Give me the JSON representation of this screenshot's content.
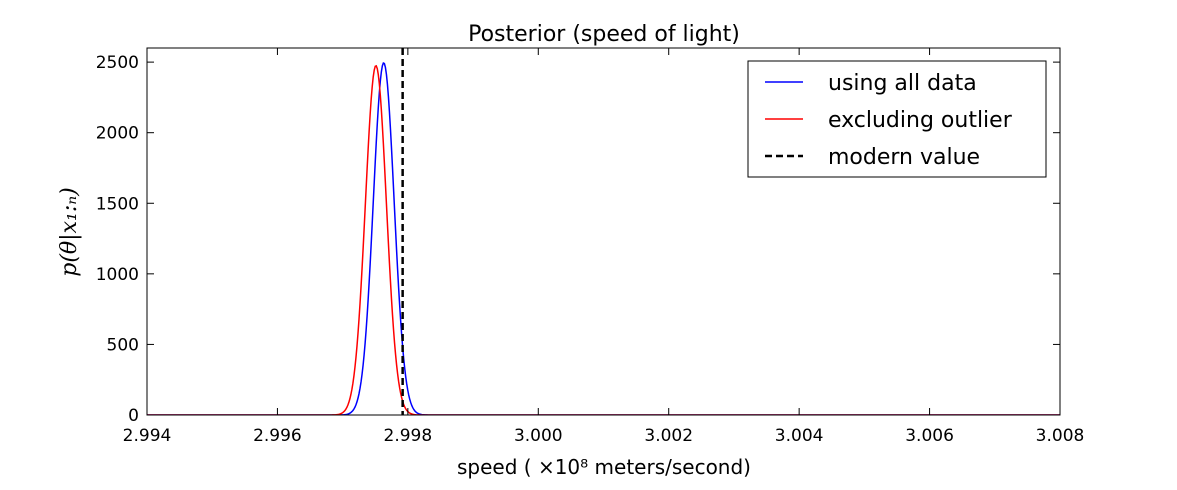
{
  "chart_data": {
    "type": "line",
    "title": "Posterior (speed of light)",
    "xlabel": "speed ( ×10⁸  meters/second)",
    "ylabel": "p(θ|x₁:ₙ)",
    "xlim": [
      2.994,
      3.008
    ],
    "ylim": [
      0,
      2600
    ],
    "xticks": [
      2.994,
      2.996,
      2.998,
      3.0,
      3.002,
      3.004,
      3.006,
      3.008
    ],
    "xtick_labels": [
      "2.994",
      "2.996",
      "2.998",
      "3.000",
      "3.002",
      "3.004",
      "3.006",
      "3.008"
    ],
    "yticks": [
      0,
      500,
      1000,
      1500,
      2000,
      2500
    ],
    "ytick_labels": [
      "0",
      "500",
      "1000",
      "1500",
      "2000",
      "2500"
    ],
    "grid": false,
    "legend_position": "top-right",
    "series": [
      {
        "name": "using all data",
        "color": "#0000ff",
        "style": "solid",
        "distribution": "normal",
        "mean": 2.99763,
        "sd": 0.00016,
        "peak": 2495
      },
      {
        "name": "excluding outlier",
        "color": "#ff0000",
        "style": "solid",
        "distribution": "normal",
        "mean": 2.99751,
        "sd": 0.000161,
        "peak": 2475
      }
    ],
    "reference_lines": [
      {
        "name": "modern value",
        "color": "#000000",
        "style": "dashed",
        "x": 2.99792
      }
    ]
  }
}
